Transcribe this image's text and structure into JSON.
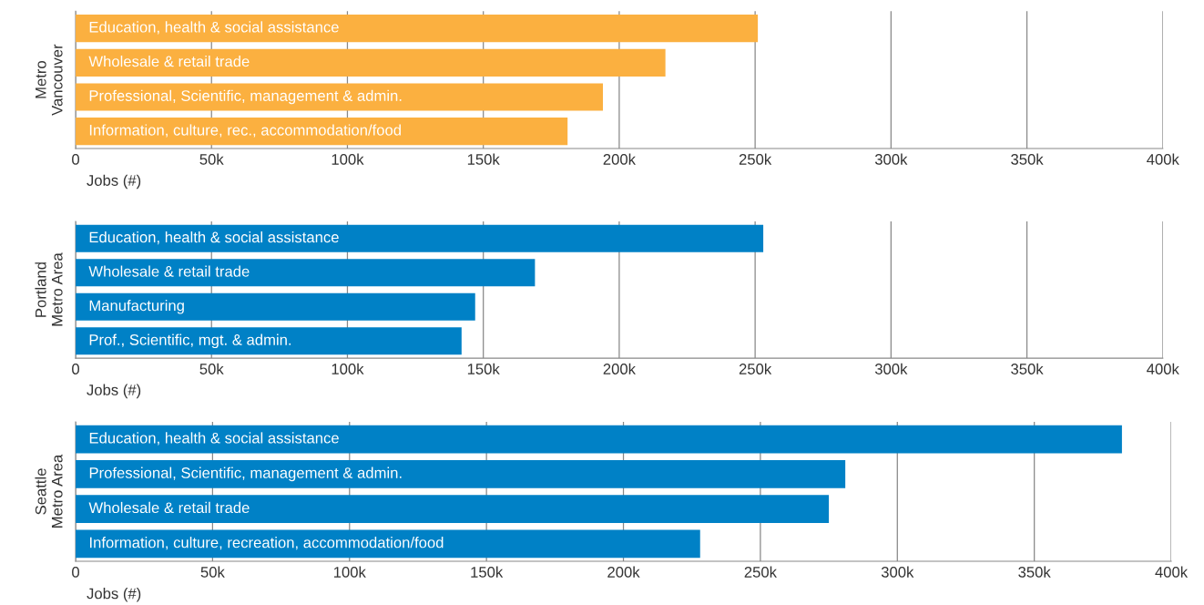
{
  "chart_data": [
    {
      "type": "bar",
      "orientation": "horizontal",
      "ylabel": "Metro\nVancouver",
      "xlabel": "Jobs (#)",
      "categories": [
        "Education, health & social assistance",
        "Wholesale & retail trade",
        "Professional, Scientific, management & admin.",
        "Information, culture, rec., accommodation/food"
      ],
      "values": [
        251000,
        217000,
        194000,
        181000
      ],
      "color": "#fbb040",
      "xlim": [
        0,
        400000
      ],
      "xticks": [
        0,
        {
          "value": 50000,
          "label": "50k"
        },
        {
          "value": 100000,
          "label": "100k"
        },
        {
          "value": 150000,
          "label": "150k"
        },
        {
          "value": 200000,
          "label": "200k"
        },
        {
          "value": 250000,
          "label": "250k"
        },
        {
          "value": 300000,
          "label": "300k"
        },
        {
          "value": 350000,
          "label": "350k"
        },
        {
          "value": 400000,
          "label": "400k"
        }
      ],
      "grid": "x",
      "legend": false
    },
    {
      "type": "bar",
      "orientation": "horizontal",
      "ylabel": "Portland\nMetro Area",
      "xlabel": "Jobs (#)",
      "categories": [
        "Education, health & social assistance",
        "Wholesale & retail trade",
        "Manufacturing",
        "Prof., Scientific, mgt. & admin."
      ],
      "values": [
        253000,
        169000,
        147000,
        142000
      ],
      "color": "#0081c6",
      "xlim": [
        0,
        400000
      ],
      "xticks": [
        0,
        {
          "value": 50000,
          "label": "50k"
        },
        {
          "value": 100000,
          "label": "100k"
        },
        {
          "value": 150000,
          "label": "150k"
        },
        {
          "value": 200000,
          "label": "200k"
        },
        {
          "value": 250000,
          "label": "250k"
        },
        {
          "value": 300000,
          "label": "300k"
        },
        {
          "value": 350000,
          "label": "350k"
        },
        {
          "value": 400000,
          "label": "400k"
        }
      ],
      "grid": "x",
      "legend": false
    },
    {
      "type": "bar",
      "orientation": "horizontal",
      "ylabel": "Seattle\nMetro Area",
      "xlabel": "Jobs (#)",
      "categories": [
        "Education, health & social assistance",
        "Professional, Scientific, management & admin.",
        "Wholesale & retail trade",
        "Information, culture, recreation, accommodation/food"
      ],
      "values": [
        382000,
        281000,
        275000,
        228000
      ],
      "color": "#0081c6",
      "xlim": [
        0,
        400000
      ],
      "xticks": [
        0,
        {
          "value": 50000,
          "label": "50k"
        },
        {
          "value": 100000,
          "label": "100k"
        },
        {
          "value": 150000,
          "label": "150k"
        },
        {
          "value": 200000,
          "label": "200k"
        },
        {
          "value": 250000,
          "label": "250k"
        },
        {
          "value": 300000,
          "label": "300k"
        },
        {
          "value": 350000,
          "label": "350k"
        },
        {
          "value": 400000,
          "label": "400k"
        }
      ],
      "grid": "x",
      "legend": false
    }
  ]
}
